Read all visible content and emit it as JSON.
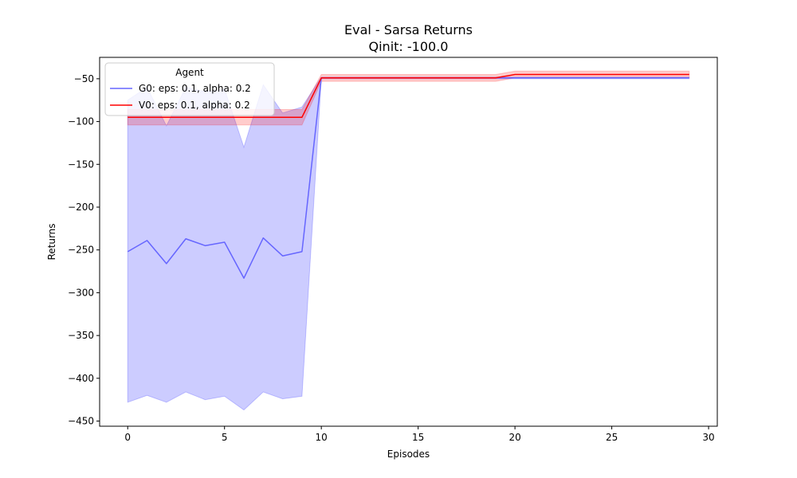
{
  "chart_data": {
    "type": "line",
    "title": "Eval - Sarsa Returns",
    "subtitle": "Qinit: -100.0",
    "xlabel": "Episodes",
    "ylabel": "Returns",
    "xlim": [
      -1.45,
      30.45
    ],
    "ylim": [
      -456,
      -25
    ],
    "xticks": [
      0,
      5,
      10,
      15,
      20,
      25,
      30
    ],
    "yticks": [
      -450,
      -400,
      -350,
      -300,
      -250,
      -200,
      -150,
      -100,
      -50
    ],
    "grid": false,
    "legend": {
      "title": "Agent",
      "placement": "top-left"
    },
    "series": [
      {
        "name": "G0: eps: 0.1, alpha: 0.2",
        "color": "#6666ff",
        "fill_color": "#0000ff",
        "x": [
          0,
          1,
          2,
          3,
          4,
          5,
          6,
          7,
          8,
          9,
          10,
          11,
          12,
          13,
          14,
          15,
          16,
          17,
          18,
          19,
          20,
          21,
          22,
          23,
          24,
          25,
          26,
          27,
          28,
          29
        ],
        "y": [
          -252,
          -239,
          -266,
          -237,
          -245,
          -241,
          -283,
          -236,
          -257,
          -252,
          -49,
          -49,
          -49,
          -49,
          -49,
          -49,
          -49,
          -49,
          -49,
          -49,
          -49,
          -49,
          -49,
          -49,
          -49,
          -49,
          -49,
          -49,
          -49,
          -49
        ],
        "upper": [
          -75,
          -60,
          -105,
          -60,
          -65,
          -62,
          -130,
          -57,
          -90,
          -83,
          -48,
          -48,
          -48,
          -48,
          -48,
          -48,
          -48,
          -48,
          -48,
          -48,
          -48,
          -48,
          -48,
          -48,
          -48,
          -48,
          -48,
          -48,
          -48,
          -48
        ],
        "lower": [
          -428,
          -420,
          -428,
          -416,
          -425,
          -421,
          -437,
          -416,
          -424,
          -421,
          -50,
          -50,
          -50,
          -50,
          -50,
          -50,
          -50,
          -50,
          -50,
          -50,
          -50,
          -50,
          -50,
          -50,
          -50,
          -50,
          -50,
          -50,
          -50,
          -50
        ]
      },
      {
        "name": "V0: eps: 0.1, alpha: 0.2",
        "color": "#ff0000",
        "fill_color": "#ff0000",
        "x": [
          0,
          1,
          2,
          3,
          4,
          5,
          6,
          7,
          8,
          9,
          10,
          11,
          12,
          13,
          14,
          15,
          16,
          17,
          18,
          19,
          20,
          21,
          22,
          23,
          24,
          25,
          26,
          27,
          28,
          29
        ],
        "y": [
          -95,
          -95,
          -95,
          -95,
          -95,
          -95,
          -95,
          -95,
          -95,
          -95,
          -49,
          -49,
          -49,
          -49,
          -49,
          -49,
          -49,
          -49,
          -49,
          -49,
          -45,
          -45,
          -45,
          -45,
          -45,
          -45,
          -45,
          -45,
          -45,
          -45
        ],
        "upper": [
          -86,
          -86,
          -86,
          -86,
          -86,
          -86,
          -86,
          -86,
          -86,
          -86,
          -45,
          -45,
          -45,
          -45,
          -45,
          -45,
          -45,
          -45,
          -45,
          -45,
          -41,
          -41,
          -41,
          -41,
          -41,
          -41,
          -41,
          -41,
          -41,
          -41
        ],
        "lower": [
          -104,
          -104,
          -104,
          -104,
          -104,
          -104,
          -104,
          -104,
          -104,
          -104,
          -53,
          -53,
          -53,
          -53,
          -53,
          -53,
          -53,
          -53,
          -53,
          -53,
          -49,
          -49,
          -49,
          -49,
          -49,
          -49,
          -49,
          -49,
          -49,
          -49
        ]
      }
    ]
  }
}
